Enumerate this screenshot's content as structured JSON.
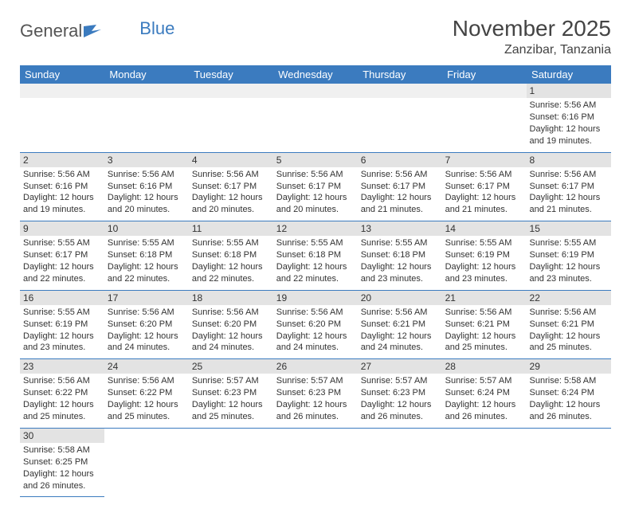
{
  "logo": {
    "text1": "General",
    "text2": "Blue"
  },
  "header": {
    "month": "November 2025",
    "location": "Zanzibar, Tanzania"
  },
  "colors": {
    "theme": "#3b7bbf",
    "stripe": "#e3e3e3",
    "bg": "#ffffff"
  },
  "dayNames": [
    "Sunday",
    "Monday",
    "Tuesday",
    "Wednesday",
    "Thursday",
    "Friday",
    "Saturday"
  ],
  "labels": {
    "sunrise": "Sunrise:",
    "sunset": "Sunset:",
    "daylightPrefix": "Daylight:",
    "hoursWord": "hours",
    "andWord": "and",
    "minutesWord": "minutes."
  },
  "startDayIndex": 6,
  "daysInMonth": 30,
  "days": {
    "1": {
      "sunrise": "5:56 AM",
      "sunset": "6:16 PM",
      "dh": 12,
      "dm": 19
    },
    "2": {
      "sunrise": "5:56 AM",
      "sunset": "6:16 PM",
      "dh": 12,
      "dm": 19
    },
    "3": {
      "sunrise": "5:56 AM",
      "sunset": "6:16 PM",
      "dh": 12,
      "dm": 20
    },
    "4": {
      "sunrise": "5:56 AM",
      "sunset": "6:17 PM",
      "dh": 12,
      "dm": 20
    },
    "5": {
      "sunrise": "5:56 AM",
      "sunset": "6:17 PM",
      "dh": 12,
      "dm": 20
    },
    "6": {
      "sunrise": "5:56 AM",
      "sunset": "6:17 PM",
      "dh": 12,
      "dm": 21
    },
    "7": {
      "sunrise": "5:56 AM",
      "sunset": "6:17 PM",
      "dh": 12,
      "dm": 21
    },
    "8": {
      "sunrise": "5:56 AM",
      "sunset": "6:17 PM",
      "dh": 12,
      "dm": 21
    },
    "9": {
      "sunrise": "5:55 AM",
      "sunset": "6:17 PM",
      "dh": 12,
      "dm": 22
    },
    "10": {
      "sunrise": "5:55 AM",
      "sunset": "6:18 PM",
      "dh": 12,
      "dm": 22
    },
    "11": {
      "sunrise": "5:55 AM",
      "sunset": "6:18 PM",
      "dh": 12,
      "dm": 22
    },
    "12": {
      "sunrise": "5:55 AM",
      "sunset": "6:18 PM",
      "dh": 12,
      "dm": 22
    },
    "13": {
      "sunrise": "5:55 AM",
      "sunset": "6:18 PM",
      "dh": 12,
      "dm": 23
    },
    "14": {
      "sunrise": "5:55 AM",
      "sunset": "6:19 PM",
      "dh": 12,
      "dm": 23
    },
    "15": {
      "sunrise": "5:55 AM",
      "sunset": "6:19 PM",
      "dh": 12,
      "dm": 23
    },
    "16": {
      "sunrise": "5:55 AM",
      "sunset": "6:19 PM",
      "dh": 12,
      "dm": 23
    },
    "17": {
      "sunrise": "5:56 AM",
      "sunset": "6:20 PM",
      "dh": 12,
      "dm": 24
    },
    "18": {
      "sunrise": "5:56 AM",
      "sunset": "6:20 PM",
      "dh": 12,
      "dm": 24
    },
    "19": {
      "sunrise": "5:56 AM",
      "sunset": "6:20 PM",
      "dh": 12,
      "dm": 24
    },
    "20": {
      "sunrise": "5:56 AM",
      "sunset": "6:21 PM",
      "dh": 12,
      "dm": 24
    },
    "21": {
      "sunrise": "5:56 AM",
      "sunset": "6:21 PM",
      "dh": 12,
      "dm": 25
    },
    "22": {
      "sunrise": "5:56 AM",
      "sunset": "6:21 PM",
      "dh": 12,
      "dm": 25
    },
    "23": {
      "sunrise": "5:56 AM",
      "sunset": "6:22 PM",
      "dh": 12,
      "dm": 25
    },
    "24": {
      "sunrise": "5:56 AM",
      "sunset": "6:22 PM",
      "dh": 12,
      "dm": 25
    },
    "25": {
      "sunrise": "5:57 AM",
      "sunset": "6:23 PM",
      "dh": 12,
      "dm": 25
    },
    "26": {
      "sunrise": "5:57 AM",
      "sunset": "6:23 PM",
      "dh": 12,
      "dm": 26
    },
    "27": {
      "sunrise": "5:57 AM",
      "sunset": "6:23 PM",
      "dh": 12,
      "dm": 26
    },
    "28": {
      "sunrise": "5:57 AM",
      "sunset": "6:24 PM",
      "dh": 12,
      "dm": 26
    },
    "29": {
      "sunrise": "5:58 AM",
      "sunset": "6:24 PM",
      "dh": 12,
      "dm": 26
    },
    "30": {
      "sunrise": "5:58 AM",
      "sunset": "6:25 PM",
      "dh": 12,
      "dm": 26
    }
  }
}
